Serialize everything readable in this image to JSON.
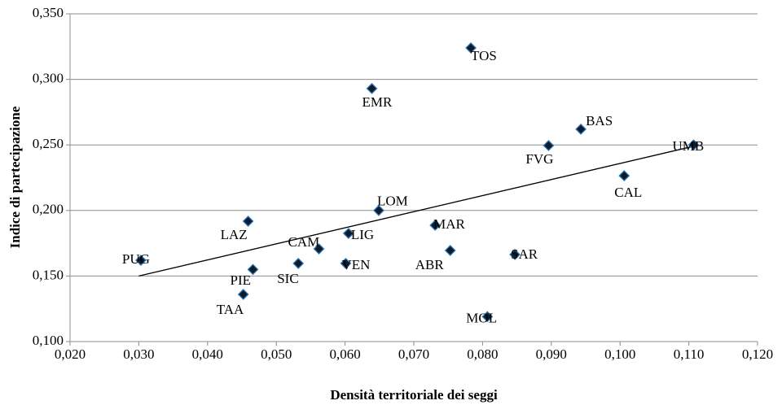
{
  "chart_data": {
    "type": "scatter",
    "x_label": "Densità territoriale dei seggi",
    "y_label": "Indice di partecipazione",
    "labels": [
      "TOS",
      "EMR",
      "BAS",
      "FVG",
      "UMB",
      "CAL",
      "LOM",
      "LAZ",
      "MAR",
      "LIG",
      "CAM",
      "ABR",
      "SAR",
      "PUG",
      "SIC",
      "VEN",
      "PIE",
      "TAA",
      "MOL"
    ],
    "x": [
      0.0783,
      0.0639,
      0.0943,
      0.0896,
      0.1107,
      0.1006,
      0.0649,
      0.0459,
      0.0731,
      0.0605,
      0.0562,
      0.0753,
      0.0847,
      0.0303,
      0.0532,
      0.0601,
      0.0466,
      0.0452,
      0.0807
    ],
    "values": [
      0.324,
      0.293,
      0.262,
      0.2495,
      0.25,
      0.2265,
      0.2,
      0.1918,
      0.1887,
      0.1825,
      0.1707,
      0.1695,
      0.1664,
      0.162,
      0.1596,
      0.1596,
      0.155,
      0.136,
      0.119
    ],
    "color": "#0d1b2a",
    "edge_color": "#2e75b6",
    "trendline": {
      "x": [
        0.03,
        0.1107
      ],
      "y": [
        0.15,
        0.249
      ]
    },
    "xlim": [
      0.02,
      0.12
    ],
    "xticks": [
      {
        "value": 0.02,
        "label": "0,020"
      },
      {
        "value": 0.03,
        "label": "0,030"
      },
      {
        "value": 0.04,
        "label": "0,040"
      },
      {
        "value": 0.05,
        "label": "0,050"
      },
      {
        "value": 0.06,
        "label": "0,060"
      },
      {
        "value": 0.07,
        "label": "0,070"
      },
      {
        "value": 0.08,
        "label": "0,080"
      },
      {
        "value": 0.09,
        "label": "0,090"
      },
      {
        "value": 0.1,
        "label": "0,100"
      },
      {
        "value": 0.11,
        "label": "0,110"
      },
      {
        "value": 0.12,
        "label": "0,120"
      }
    ],
    "ylim": [
      0.1,
      0.35
    ],
    "yticks": [
      {
        "value": 0.1,
        "label": "0,100"
      },
      {
        "value": 0.15,
        "label": "0,150"
      },
      {
        "value": 0.2,
        "label": "0,200"
      },
      {
        "value": 0.25,
        "label": "0,250"
      },
      {
        "value": 0.3,
        "label": "0,300"
      },
      {
        "value": 0.35,
        "label": "0,350"
      }
    ],
    "grid": true
  }
}
